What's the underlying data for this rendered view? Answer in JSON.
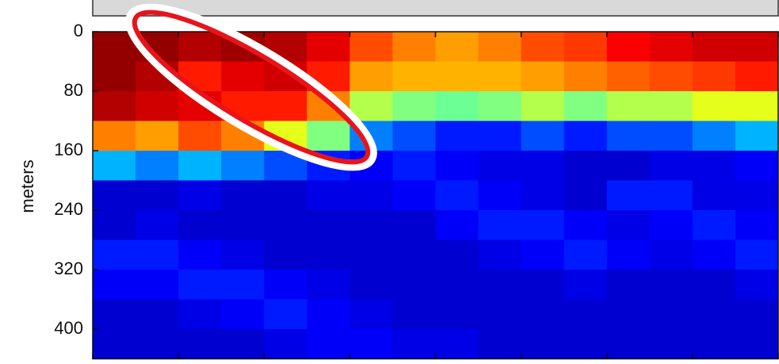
{
  "chart_data": {
    "type": "heatmap",
    "ylabel": "meters",
    "ylim": [
      0,
      440
    ],
    "yticks": [
      0,
      80,
      160,
      240,
      320,
      400
    ],
    "colormap": "jet",
    "z": [
      [
        0.98,
        0.98,
        0.95,
        0.75,
        0.3,
        0.08,
        0.08,
        0.15,
        0.12,
        0.08,
        0.08
      ],
      [
        0.98,
        0.95,
        0.92,
        0.72,
        0.25,
        0.08,
        0.1,
        0.15,
        0.12,
        0.08,
        0.08
      ],
      [
        0.95,
        0.85,
        0.9,
        0.8,
        0.3,
        0.1,
        0.08,
        0.12,
        0.15,
        0.1,
        0.08
      ],
      [
        0.97,
        0.9,
        0.85,
        0.75,
        0.25,
        0.08,
        0.08,
        0.1,
        0.15,
        0.12,
        0.08
      ],
      [
        0.95,
        0.92,
        0.85,
        0.6,
        0.2,
        0.08,
        0.08,
        0.08,
        0.12,
        0.15,
        0.1
      ],
      [
        0.9,
        0.85,
        0.75,
        0.5,
        0.15,
        0.1,
        0.08,
        0.08,
        0.1,
        0.12,
        0.12
      ],
      [
        0.8,
        0.72,
        0.55,
        0.25,
        0.12,
        0.1,
        0.08,
        0.08,
        0.08,
        0.1,
        0.12
      ],
      [
        0.75,
        0.7,
        0.5,
        0.2,
        0.15,
        0.12,
        0.08,
        0.08,
        0.08,
        0.08,
        0.1
      ],
      [
        0.72,
        0.7,
        0.48,
        0.15,
        0.12,
        0.15,
        0.12,
        0.08,
        0.08,
        0.08,
        0.1
      ],
      [
        0.75,
        0.7,
        0.5,
        0.15,
        0.1,
        0.12,
        0.15,
        0.1,
        0.08,
        0.08,
        0.08
      ],
      [
        0.8,
        0.72,
        0.55,
        0.2,
        0.1,
        0.1,
        0.15,
        0.12,
        0.08,
        0.08,
        0.08
      ],
      [
        0.82,
        0.75,
        0.5,
        0.15,
        0.08,
        0.08,
        0.12,
        0.15,
        0.1,
        0.08,
        0.08
      ],
      [
        0.88,
        0.78,
        0.55,
        0.2,
        0.08,
        0.15,
        0.1,
        0.12,
        0.08,
        0.08,
        0.08
      ],
      [
        0.9,
        0.8,
        0.55,
        0.2,
        0.1,
        0.15,
        0.12,
        0.1,
        0.08,
        0.08,
        0.08
      ],
      [
        0.92,
        0.82,
        0.6,
        0.25,
        0.1,
        0.1,
        0.15,
        0.12,
        0.08,
        0.08,
        0.08
      ],
      [
        0.92,
        0.85,
        0.6,
        0.3,
        0.12,
        0.1,
        0.12,
        0.15,
        0.1,
        0.08,
        0.08
      ]
    ]
  }
}
